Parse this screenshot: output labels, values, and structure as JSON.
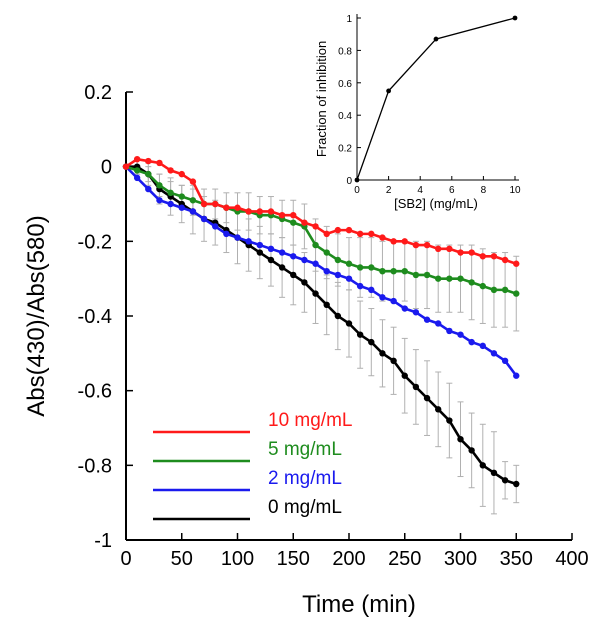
{
  "chart_data": [
    {
      "type": "line",
      "xlabel": "Time (min)",
      "ylabel": "Abs(430)/Abs(580)",
      "xlim": [
        0,
        400
      ],
      "ylim": [
        -1,
        0.2
      ],
      "x_ticks": [
        "0",
        "50",
        "100",
        "150",
        "200",
        "250",
        "300",
        "350",
        "400"
      ],
      "y_ticks": [
        "0.2",
        "0",
        "-0.2",
        "-0.4",
        "-0.6",
        "-0.8",
        "-1"
      ],
      "grid": false,
      "legend_position": "bottom-left",
      "series": [
        {
          "name": "10 mg/mL",
          "color": "#ff1a1a",
          "x": [
            0,
            10,
            20,
            30,
            40,
            50,
            60,
            70,
            80,
            90,
            100,
            110,
            120,
            130,
            140,
            150,
            160,
            170,
            180,
            190,
            200,
            210,
            220,
            230,
            240,
            250,
            260,
            270,
            280,
            290,
            300,
            310,
            320,
            330,
            340,
            350
          ],
          "y": [
            0,
            0.02,
            0.015,
            0.01,
            -0.01,
            -0.02,
            -0.04,
            -0.1,
            -0.1,
            -0.11,
            -0.11,
            -0.12,
            -0.12,
            -0.12,
            -0.13,
            -0.13,
            -0.15,
            -0.16,
            -0.18,
            -0.17,
            -0.17,
            -0.18,
            -0.18,
            -0.19,
            -0.2,
            -0.2,
            -0.21,
            -0.21,
            -0.22,
            -0.22,
            -0.23,
            -0.23,
            -0.24,
            -0.24,
            -0.25,
            -0.26
          ]
        },
        {
          "name": "5 mg/mL",
          "color": "#1e8c1e",
          "x": [
            0,
            10,
            20,
            30,
            40,
            50,
            60,
            70,
            80,
            90,
            100,
            110,
            120,
            130,
            140,
            150,
            160,
            170,
            180,
            190,
            200,
            210,
            220,
            230,
            240,
            250,
            260,
            270,
            280,
            290,
            300,
            310,
            320,
            330,
            340,
            350
          ],
          "y": [
            0,
            -0.01,
            -0.02,
            -0.05,
            -0.07,
            -0.08,
            -0.09,
            -0.1,
            -0.1,
            -0.11,
            -0.12,
            -0.12,
            -0.13,
            -0.13,
            -0.14,
            -0.15,
            -0.16,
            -0.21,
            -0.23,
            -0.25,
            -0.26,
            -0.27,
            -0.27,
            -0.28,
            -0.28,
            -0.28,
            -0.29,
            -0.29,
            -0.3,
            -0.3,
            -0.3,
            -0.31,
            -0.32,
            -0.33,
            -0.33,
            -0.34
          ]
        },
        {
          "name": "2 mg/mL",
          "color": "#1a1aee",
          "x": [
            0,
            10,
            20,
            30,
            40,
            50,
            60,
            70,
            80,
            90,
            100,
            110,
            120,
            130,
            140,
            150,
            160,
            170,
            180,
            190,
            200,
            210,
            220,
            230,
            240,
            250,
            260,
            270,
            280,
            290,
            300,
            310,
            320,
            330,
            340,
            350
          ],
          "y": [
            0,
            -0.03,
            -0.06,
            -0.09,
            -0.1,
            -0.11,
            -0.12,
            -0.14,
            -0.16,
            -0.18,
            -0.19,
            -0.2,
            -0.21,
            -0.22,
            -0.23,
            -0.24,
            -0.25,
            -0.26,
            -0.28,
            -0.29,
            -0.3,
            -0.32,
            -0.33,
            -0.35,
            -0.36,
            -0.38,
            -0.39,
            -0.41,
            -0.42,
            -0.44,
            -0.45,
            -0.47,
            -0.48,
            -0.5,
            -0.52,
            -0.56
          ]
        },
        {
          "name": "0 mg/mL",
          "color": "#000000",
          "x": [
            0,
            10,
            20,
            30,
            40,
            50,
            60,
            70,
            80,
            90,
            100,
            110,
            120,
            130,
            140,
            150,
            160,
            170,
            180,
            190,
            200,
            210,
            220,
            230,
            240,
            250,
            260,
            270,
            280,
            290,
            300,
            310,
            320,
            330,
            340,
            350
          ],
          "y": [
            0,
            0,
            -0.02,
            -0.06,
            -0.08,
            -0.1,
            -0.12,
            -0.14,
            -0.15,
            -0.17,
            -0.19,
            -0.21,
            -0.23,
            -0.25,
            -0.27,
            -0.29,
            -0.31,
            -0.34,
            -0.37,
            -0.4,
            -0.42,
            -0.45,
            -0.47,
            -0.5,
            -0.52,
            -0.56,
            -0.59,
            -0.62,
            -0.65,
            -0.68,
            -0.73,
            -0.76,
            -0.8,
            -0.82,
            -0.84,
            -0.85
          ]
        }
      ],
      "error_bars": {
        "color": "#b0b0b0",
        "note_series": [
          "5 mg/mL",
          "0 mg/mL"
        ],
        "5 mg/mL": [
          0,
          0.01,
          0.02,
          0.03,
          0.03,
          0.03,
          0.04,
          0.04,
          0.04,
          0.04,
          0.05,
          0.05,
          0.05,
          0.05,
          0.05,
          0.06,
          0.06,
          0.07,
          0.07,
          0.07,
          0.07,
          0.08,
          0.08,
          0.08,
          0.08,
          0.08,
          0.09,
          0.09,
          0.09,
          0.09,
          0.09,
          0.1,
          0.1,
          0.1,
          0.1,
          0.1
        ],
        "0 mg/mL": [
          0,
          0.02,
          0.03,
          0.04,
          0.05,
          0.05,
          0.06,
          0.06,
          0.06,
          0.06,
          0.07,
          0.07,
          0.07,
          0.07,
          0.08,
          0.08,
          0.08,
          0.08,
          0.08,
          0.09,
          0.09,
          0.09,
          0.09,
          0.09,
          0.09,
          0.1,
          0.1,
          0.1,
          0.1,
          0.1,
          0.1,
          0.1,
          0.11,
          0.11,
          0.05,
          0.05
        ]
      }
    },
    {
      "type": "line",
      "xlabel": "[SB2] (mg/mL)",
      "ylabel": "Fraction of inhibition",
      "xlim": [
        0,
        10
      ],
      "ylim": [
        0,
        1
      ],
      "x_ticks": [
        "0",
        "2",
        "4",
        "6",
        "8",
        "10"
      ],
      "y_ticks": [
        "0",
        "0.2",
        "0.4",
        "0.6",
        "0.8",
        "1"
      ],
      "grid": false,
      "series": [
        {
          "color": "#000000",
          "x": [
            0,
            2,
            5,
            10
          ],
          "y": [
            0,
            0.55,
            0.87,
            1.0
          ]
        }
      ]
    }
  ]
}
